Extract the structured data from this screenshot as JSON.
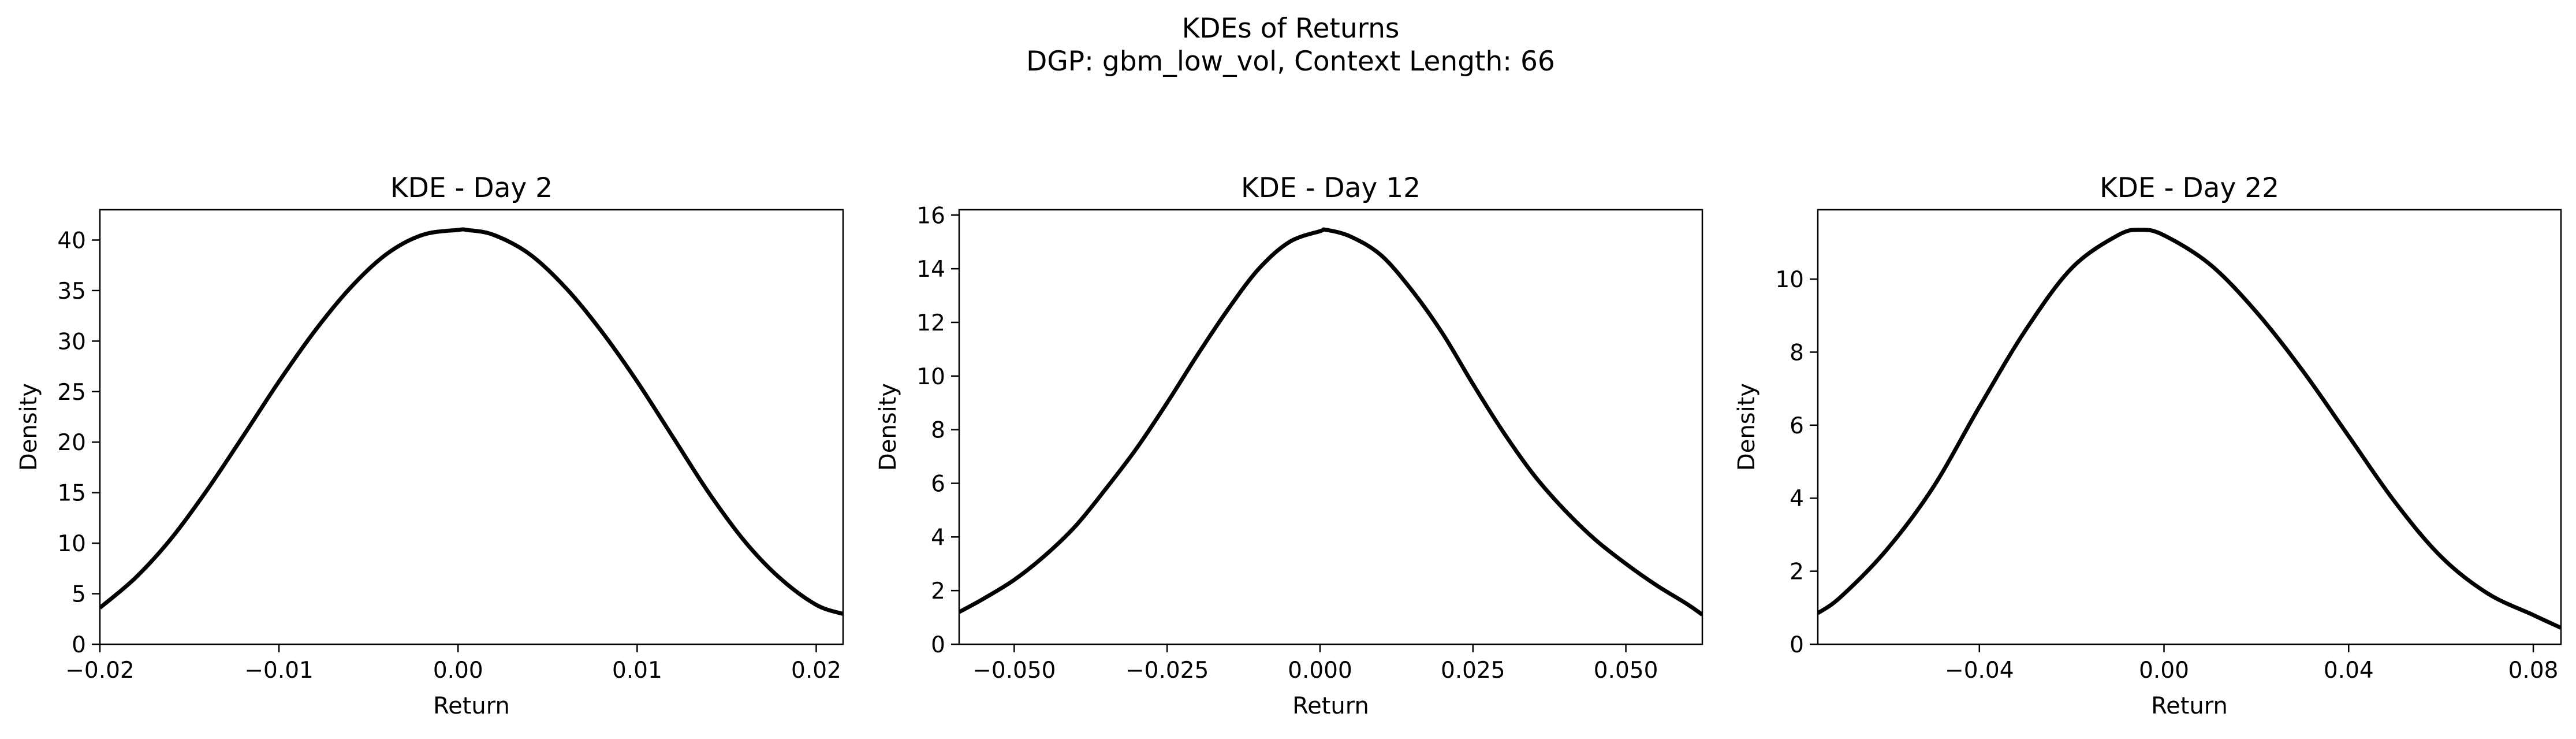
{
  "figure": {
    "title": "KDEs of Returns",
    "subtitle": "DGP: gbm_low_vol, Context Length: 66"
  },
  "chart_data": [
    {
      "type": "line",
      "title": "KDE - Day 2",
      "xlabel": "Return",
      "ylabel": "Density",
      "xlim": [
        -0.02,
        0.0215
      ],
      "ylim": [
        0,
        43
      ],
      "xticks": [
        -0.02,
        -0.01,
        0.0,
        0.01,
        0.02
      ],
      "xtick_labels": [
        "−0.02",
        "−0.01",
        "0.00",
        "0.01",
        "0.02"
      ],
      "yticks": [
        0,
        5,
        10,
        15,
        20,
        25,
        30,
        35,
        40
      ],
      "ytick_labels": [
        "0",
        "5",
        "10",
        "15",
        "20",
        "25",
        "30",
        "35",
        "40"
      ],
      "grid": false,
      "series": [
        {
          "color": "#000000",
          "x": [
            -0.02,
            -0.018,
            -0.016,
            -0.014,
            -0.012,
            -0.01,
            -0.008,
            -0.006,
            -0.004,
            -0.002,
            0.0,
            0.0005,
            0.002,
            0.004,
            0.006,
            0.008,
            0.01,
            0.012,
            0.014,
            0.016,
            0.018,
            0.02,
            0.0215
          ],
          "y": [
            3.6,
            6.6,
            10.5,
            15.3,
            20.6,
            26.0,
            31.0,
            35.3,
            38.6,
            40.5,
            41.0,
            41.0,
            40.5,
            38.6,
            35.3,
            31.0,
            26.0,
            20.5,
            15.0,
            10.2,
            6.5,
            3.9,
            3.0
          ]
        }
      ]
    },
    {
      "type": "line",
      "title": "KDE - Day 12",
      "xlabel": "Return",
      "ylabel": "Density",
      "xlim": [
        -0.059,
        0.0625
      ],
      "ylim": [
        0,
        16.2
      ],
      "xticks": [
        -0.05,
        -0.025,
        0.0,
        0.025,
        0.05
      ],
      "xtick_labels": [
        "−0.050",
        "−0.025",
        "0.000",
        "0.025",
        "0.050"
      ],
      "yticks": [
        0,
        2,
        4,
        6,
        8,
        10,
        12,
        14,
        16
      ],
      "ytick_labels": [
        "0",
        "2",
        "4",
        "6",
        "8",
        "10",
        "12",
        "14",
        "16"
      ],
      "grid": false,
      "series": [
        {
          "color": "#000000",
          "x": [
            -0.059,
            -0.055,
            -0.05,
            -0.045,
            -0.04,
            -0.035,
            -0.03,
            -0.025,
            -0.02,
            -0.015,
            -0.01,
            -0.005,
            0.0,
            0.001,
            0.005,
            0.01,
            0.015,
            0.02,
            0.025,
            0.03,
            0.035,
            0.04,
            0.045,
            0.05,
            0.055,
            0.06,
            0.0625
          ],
          "y": [
            1.2,
            1.7,
            2.4,
            3.3,
            4.4,
            5.8,
            7.3,
            9.0,
            10.8,
            12.5,
            14.0,
            15.0,
            15.4,
            15.45,
            15.2,
            14.5,
            13.2,
            11.6,
            9.7,
            7.9,
            6.3,
            5.0,
            3.9,
            3.0,
            2.2,
            1.5,
            1.1
          ]
        }
      ]
    },
    {
      "type": "line",
      "title": "KDE - Day 22",
      "xlabel": "Return",
      "ylabel": "Density",
      "xlim": [
        -0.075,
        0.086
      ],
      "ylim": [
        0,
        11.9
      ],
      "xticks": [
        -0.04,
        0.0,
        0.04,
        0.08
      ],
      "xtick_labels": [
        "−0.04",
        "0.00",
        "0.04",
        "0.08"
      ],
      "yticks": [
        0,
        2,
        4,
        6,
        8,
        10
      ],
      "ytick_labels": [
        "0",
        "2",
        "4",
        "6",
        "8",
        "10"
      ],
      "grid": false,
      "series": [
        {
          "color": "#000000",
          "x": [
            -0.075,
            -0.07,
            -0.06,
            -0.05,
            -0.04,
            -0.03,
            -0.02,
            -0.01,
            -0.005,
            0.0,
            0.01,
            0.02,
            0.03,
            0.04,
            0.05,
            0.06,
            0.07,
            0.08,
            0.086
          ],
          "y": [
            0.85,
            1.3,
            2.6,
            4.3,
            6.5,
            8.6,
            10.3,
            11.2,
            11.35,
            11.2,
            10.4,
            9.1,
            7.5,
            5.7,
            3.9,
            2.4,
            1.4,
            0.8,
            0.45
          ]
        }
      ]
    }
  ]
}
